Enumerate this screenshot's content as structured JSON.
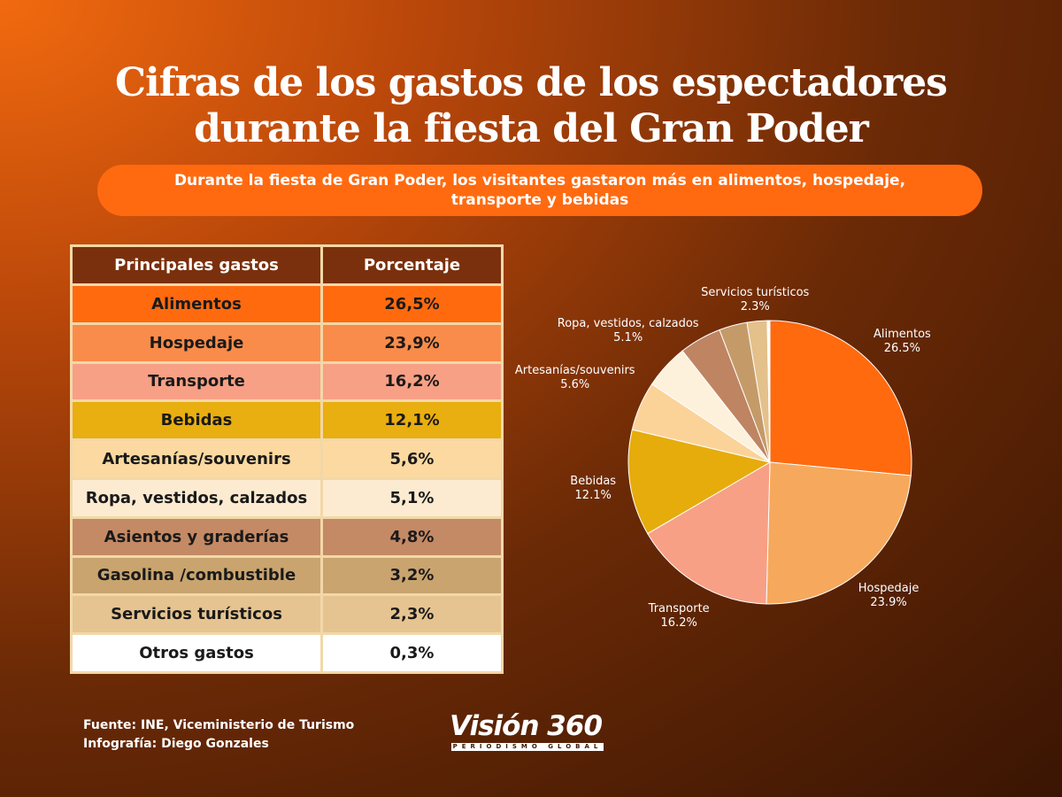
{
  "title": "Cifras de los gastos de los espectadores durante la fiesta del Gran Poder",
  "subtitle": "Durante la fiesta de Gran Poder, los visitantes gastaron más en alimentos, hospedaje, transporte y bebidas",
  "table": {
    "headers": [
      "Principales gastos",
      "Porcentaje"
    ],
    "rows": [
      {
        "label": "Alimentos",
        "value": "26,5%",
        "color": "#ff6a0f"
      },
      {
        "label": "Hospedaje",
        "value": "23,9%",
        "color": "#f98c4a"
      },
      {
        "label": "Transporte",
        "value": "16,2%",
        "color": "#f7a085"
      },
      {
        "label": "Bebidas",
        "value": "12,1%",
        "color": "#e9ae0f"
      },
      {
        "label": "Artesanías/souvenirs",
        "value": "5,6%",
        "color": "#fcd9a0"
      },
      {
        "label": "Ropa, vestidos, calzados",
        "value": "5,1%",
        "color": "#fdebd1"
      },
      {
        "label": "Asientos y graderías",
        "value": "4,8%",
        "color": "#c48a65"
      },
      {
        "label": "Gasolina /combustible",
        "value": "3,2%",
        "color": "#c9a46f"
      },
      {
        "label": "Servicios turísticos",
        "value": "2,3%",
        "color": "#e5c491"
      },
      {
        "label": "Otros gastos",
        "value": "0,3%",
        "color": "#ffffff"
      }
    ]
  },
  "chart_data": {
    "type": "pie",
    "title": "",
    "categories": [
      "Alimentos",
      "Hospedaje",
      "Transporte",
      "Bebidas",
      "Artesanías/souvenirs",
      "Ropa, vestidos, calzados",
      "Asientos y graderías",
      "Gasolina /combustible",
      "Servicios turísticos",
      "Otros gastos"
    ],
    "values": [
      26.5,
      23.9,
      16.2,
      12.1,
      5.6,
      5.1,
      4.8,
      3.2,
      2.3,
      0.3
    ],
    "colors": [
      "#ff6a0f",
      "#f6a95c",
      "#f7a085",
      "#e6ac0c",
      "#fbd399",
      "#fdf1dc",
      "#bf8462",
      "#c49b68",
      "#e4c08b",
      "#ffffff"
    ],
    "labels": [
      {
        "name": "Alimentos",
        "value": "26.5%"
      },
      {
        "name": "Hospedaje",
        "value": "23.9%"
      },
      {
        "name": "Transporte",
        "value": "16.2%"
      },
      {
        "name": "Bebidas",
        "value": "12.1%"
      },
      {
        "name": "Artesanías/souvenirs",
        "value": "5.6%"
      },
      {
        "name": "Ropa, vestidos, calzados",
        "value": "5.1%"
      },
      {
        "name": "Servicios turísticos",
        "value": "2.3%"
      }
    ]
  },
  "footer": {
    "source": "Fuente: INE, Viceministerio de Turismo",
    "credit": "Infografía: Diego Gonzales"
  },
  "logo": {
    "name": "Visión 360",
    "tagline": "PERIODISMO GLOBAL"
  }
}
